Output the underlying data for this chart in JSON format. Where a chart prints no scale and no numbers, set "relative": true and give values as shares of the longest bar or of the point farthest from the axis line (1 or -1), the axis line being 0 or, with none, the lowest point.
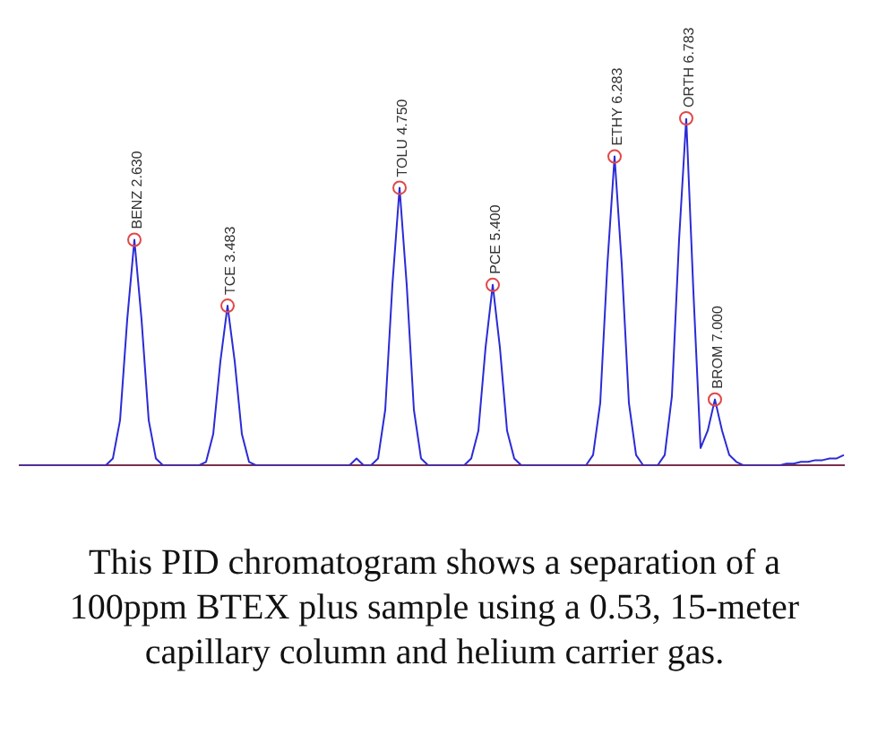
{
  "chart_data": {
    "type": "line",
    "relative": true,
    "legend": false,
    "grid": false,
    "categories": [
      null,
      null,
      null,
      null,
      null,
      null,
      null,
      null,
      null,
      null,
      null,
      null,
      null,
      null,
      null,
      null,
      null,
      null,
      null,
      null,
      null,
      null,
      null,
      null,
      null,
      null,
      null,
      null,
      null,
      null,
      null,
      null,
      null,
      null,
      null,
      null,
      null,
      null,
      null,
      null,
      null,
      null,
      null,
      null,
      null,
      null,
      null,
      null,
      null,
      null,
      null,
      null,
      null,
      null,
      null,
      null,
      null,
      null,
      null,
      null,
      null,
      null,
      null,
      null,
      null,
      null,
      null,
      null,
      null,
      null,
      null,
      null,
      null,
      null,
      null,
      null,
      null,
      null,
      null,
      null,
      null,
      null,
      null,
      null,
      null,
      null,
      null,
      null,
      null,
      null,
      null,
      null,
      null,
      null,
      null,
      null,
      null,
      null,
      null,
      null,
      null,
      null,
      null,
      null,
      null,
      null,
      null,
      null,
      null,
      null,
      null,
      null,
      null,
      null,
      null,
      null
    ],
    "series": [
      {
        "color": "#2b2bd6",
        "values": [
          0,
          0,
          0,
          0,
          0,
          0,
          0,
          0,
          0,
          0,
          0,
          0,
          0,
          0.02,
          0.13,
          0.42,
          0.65,
          0.42,
          0.13,
          0.02,
          0,
          0,
          0,
          0,
          0,
          0,
          0.01,
          0.09,
          0.3,
          0.46,
          0.3,
          0.09,
          0.01,
          0,
          0,
          0,
          0,
          0,
          0,
          0,
          0,
          0,
          0,
          0,
          0,
          0,
          0,
          0.02,
          0,
          0,
          0.02,
          0.16,
          0.52,
          0.8,
          0.52,
          0.16,
          0.02,
          0,
          0,
          0,
          0,
          0,
          0,
          0.02,
          0.1,
          0.34,
          0.52,
          0.34,
          0.1,
          0.02,
          0,
          0,
          0,
          0,
          0,
          0,
          0,
          0,
          0,
          0,
          0.03,
          0.18,
          0.58,
          0.89,
          0.58,
          0.18,
          0.03,
          0,
          0,
          0,
          0.03,
          0.2,
          0.65,
          1,
          0.5,
          0.05,
          0.1,
          0.19,
          0.1,
          0.03,
          0.01,
          0,
          0,
          0,
          0,
          0,
          0,
          0.005,
          0.005,
          0.01,
          0.01,
          0.015,
          0.015,
          0.02,
          0.02,
          0.03
        ]
      }
    ],
    "annotations": [
      "BENZ 2.630",
      "TCE 3.483",
      "TOLU 4.750",
      "PCE 5.400",
      "ETHY 6.283",
      "ORTH 6.783",
      "BROM 7.000",
      "This PID chromatogram shows a separation of a 100ppm BTEX plus sample using a 0.53, 15-meter capillary column and helium carrier gas."
    ]
  }
}
